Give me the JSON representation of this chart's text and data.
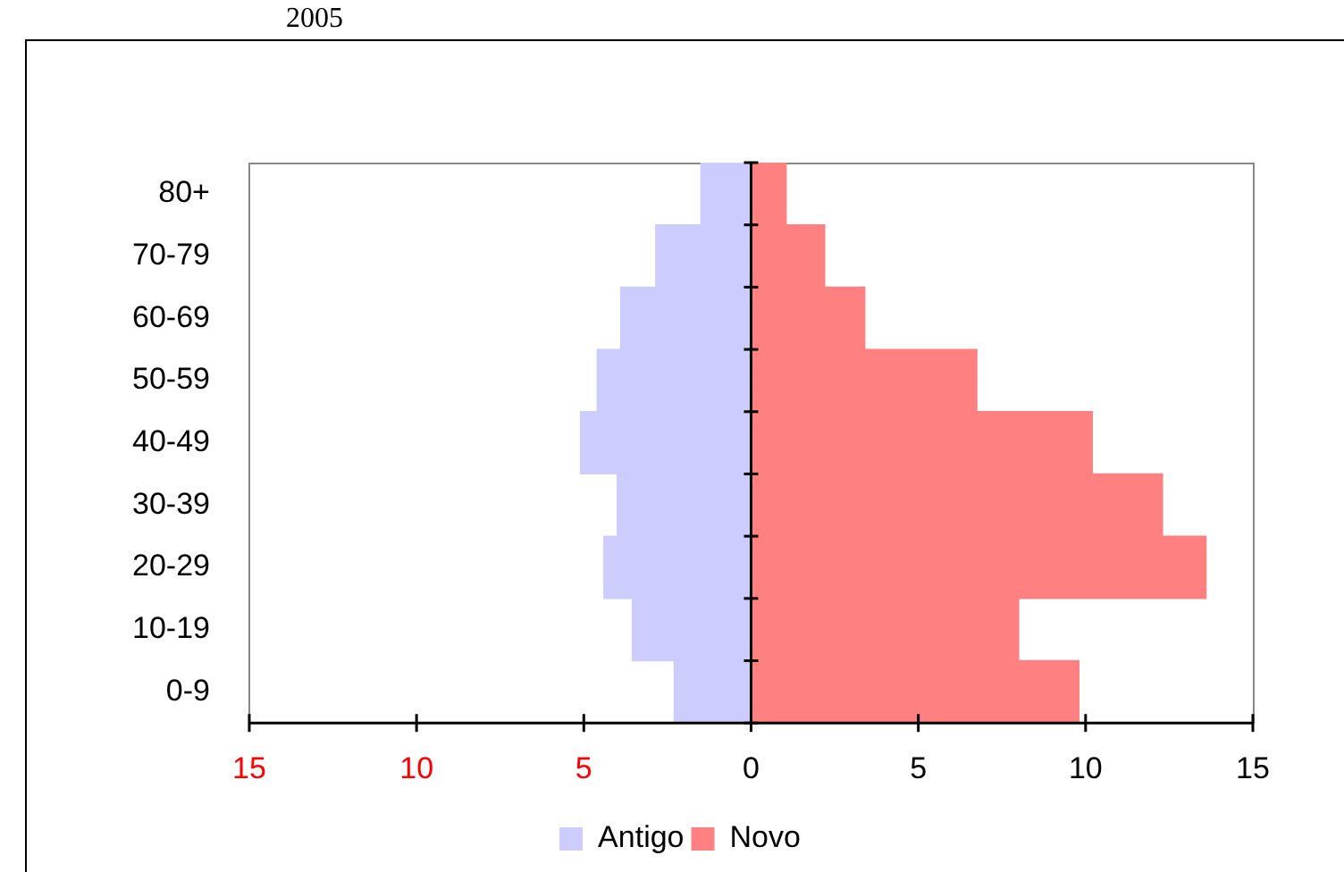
{
  "chart_data": {
    "type": "bar",
    "orientation": "horizontal",
    "stacked": true,
    "title": "2005",
    "categories": [
      "80+",
      "70-79",
      "60-69",
      "50-59",
      "40-49",
      "30-39",
      "20-29",
      "10-19",
      "0-9"
    ],
    "series": [
      {
        "name": "Antigo",
        "color": "#ccccff",
        "values": [
          -1.5,
          -2.85,
          -3.9,
          -4.6,
          -5.1,
          -4.0,
          -4.4,
          -3.55,
          -2.3
        ]
      },
      {
        "name": "Novo",
        "color": "#ff8080",
        "values": [
          1.05,
          2.2,
          3.4,
          6.75,
          10.2,
          12.3,
          13.6,
          8.0,
          9.8
        ]
      }
    ],
    "xlim": [
      -15,
      15
    ],
    "xticks": [
      {
        "value": -15,
        "label": "15"
      },
      {
        "value": -10,
        "label": "10"
      },
      {
        "value": -5,
        "label": "5"
      },
      0,
      5,
      10,
      15
    ],
    "ref_lines": [
      {
        "axis": "x",
        "value": 0,
        "color": "#000000"
      }
    ],
    "grid": false,
    "legend": "bottom"
  }
}
